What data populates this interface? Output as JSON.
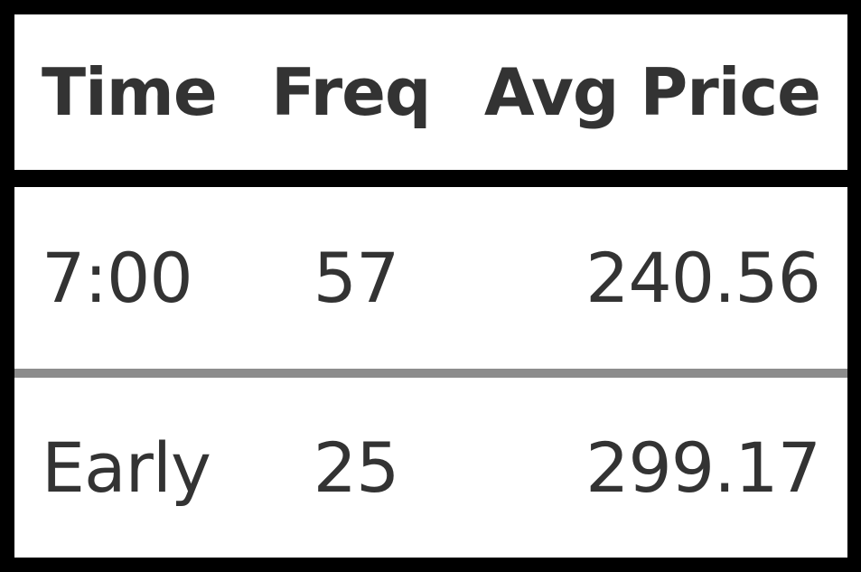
{
  "table": {
    "headers": [
      "Time",
      "Freq",
      "Avg Price"
    ],
    "rows": [
      {
        "time": "7:00",
        "freq": "57",
        "avg_price": "240.56"
      },
      {
        "time": "Early",
        "freq": "25",
        "avg_price": "299.17"
      }
    ]
  },
  "colors": {
    "background": "#000000",
    "cell": "#ffffff",
    "text": "#333333",
    "divider": "#8c8c8c"
  }
}
